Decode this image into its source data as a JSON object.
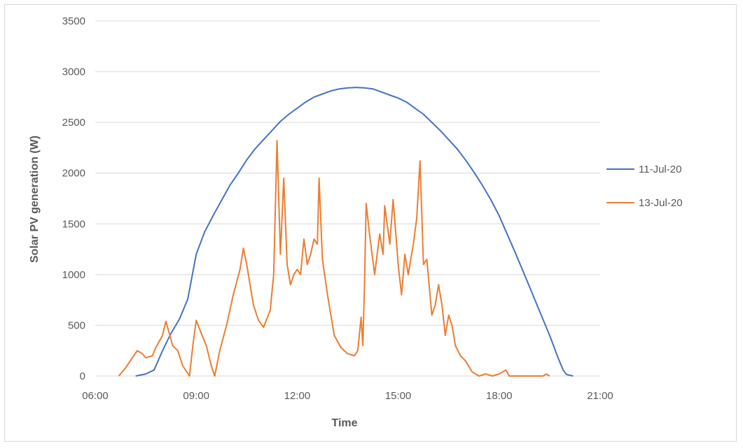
{
  "chart_data": {
    "type": "line",
    "title": "",
    "xlabel": "Time",
    "ylabel": "Solar PV generation (W)",
    "x_unit": "hours of day",
    "xlim": [
      6,
      21
    ],
    "ylim": [
      0,
      3500
    ],
    "grid": "horizontal",
    "legend_position": "right",
    "x_ticks": [
      {
        "value": 6,
        "label": "06:00"
      },
      {
        "value": 9,
        "label": "09:00"
      },
      {
        "value": 12,
        "label": "12:00"
      },
      {
        "value": 15,
        "label": "15:00"
      },
      {
        "value": 18,
        "label": "18:00"
      },
      {
        "value": 21,
        "label": "21:00"
      }
    ],
    "y_ticks": [
      0,
      500,
      1000,
      1500,
      2000,
      2500,
      3000,
      3500
    ],
    "series": [
      {
        "name": "11-Jul-20",
        "color": "#4472c4",
        "points": [
          [
            7.2,
            0
          ],
          [
            7.5,
            20
          ],
          [
            7.75,
            60
          ],
          [
            8.0,
            250
          ],
          [
            8.25,
            420
          ],
          [
            8.5,
            560
          ],
          [
            8.75,
            760
          ],
          [
            9.0,
            1200
          ],
          [
            9.25,
            1420
          ],
          [
            9.5,
            1580
          ],
          [
            9.75,
            1730
          ],
          [
            10.0,
            1880
          ],
          [
            10.25,
            2000
          ],
          [
            10.5,
            2130
          ],
          [
            10.75,
            2240
          ],
          [
            11.0,
            2330
          ],
          [
            11.25,
            2420
          ],
          [
            11.5,
            2510
          ],
          [
            11.75,
            2580
          ],
          [
            12.0,
            2640
          ],
          [
            12.25,
            2700
          ],
          [
            12.5,
            2750
          ],
          [
            12.75,
            2780
          ],
          [
            13.0,
            2810
          ],
          [
            13.25,
            2830
          ],
          [
            13.5,
            2840
          ],
          [
            13.75,
            2845
          ],
          [
            14.0,
            2840
          ],
          [
            14.25,
            2830
          ],
          [
            14.5,
            2800
          ],
          [
            14.75,
            2770
          ],
          [
            15.0,
            2740
          ],
          [
            15.25,
            2700
          ],
          [
            15.5,
            2640
          ],
          [
            15.75,
            2580
          ],
          [
            16.0,
            2500
          ],
          [
            16.25,
            2420
          ],
          [
            16.5,
            2330
          ],
          [
            16.75,
            2240
          ],
          [
            17.0,
            2130
          ],
          [
            17.25,
            2010
          ],
          [
            17.5,
            1880
          ],
          [
            17.75,
            1740
          ],
          [
            18.0,
            1580
          ],
          [
            18.25,
            1390
          ],
          [
            18.5,
            1200
          ],
          [
            18.75,
            1000
          ],
          [
            19.0,
            800
          ],
          [
            19.25,
            600
          ],
          [
            19.5,
            400
          ],
          [
            19.75,
            180
          ],
          [
            19.9,
            60
          ],
          [
            20.0,
            15
          ],
          [
            20.2,
            0
          ]
        ]
      },
      {
        "name": "13-Jul-20",
        "color": "#ed7d31",
        "points": [
          [
            6.7,
            0
          ],
          [
            6.9,
            80
          ],
          [
            7.1,
            180
          ],
          [
            7.25,
            250
          ],
          [
            7.4,
            220
          ],
          [
            7.5,
            180
          ],
          [
            7.7,
            200
          ],
          [
            7.8,
            280
          ],
          [
            8.0,
            400
          ],
          [
            8.1,
            540
          ],
          [
            8.2,
            420
          ],
          [
            8.3,
            300
          ],
          [
            8.45,
            250
          ],
          [
            8.6,
            100
          ],
          [
            8.8,
            0
          ],
          [
            8.9,
            300
          ],
          [
            9.0,
            550
          ],
          [
            9.15,
            420
          ],
          [
            9.3,
            300
          ],
          [
            9.45,
            100
          ],
          [
            9.55,
            0
          ],
          [
            9.7,
            250
          ],
          [
            9.9,
            500
          ],
          [
            10.0,
            650
          ],
          [
            10.1,
            800
          ],
          [
            10.3,
            1050
          ],
          [
            10.4,
            1260
          ],
          [
            10.5,
            1100
          ],
          [
            10.6,
            900
          ],
          [
            10.7,
            700
          ],
          [
            10.85,
            550
          ],
          [
            11.0,
            480
          ],
          [
            11.2,
            650
          ],
          [
            11.3,
            1000
          ],
          [
            11.4,
            2320
          ],
          [
            11.5,
            1200
          ],
          [
            11.6,
            1950
          ],
          [
            11.7,
            1100
          ],
          [
            11.8,
            900
          ],
          [
            11.9,
            1000
          ],
          [
            12.0,
            1050
          ],
          [
            12.1,
            1000
          ],
          [
            12.2,
            1350
          ],
          [
            12.3,
            1100
          ],
          [
            12.4,
            1200
          ],
          [
            12.5,
            1350
          ],
          [
            12.6,
            1300
          ],
          [
            12.65,
            1950
          ],
          [
            12.75,
            1150
          ],
          [
            12.9,
            800
          ],
          [
            13.0,
            600
          ],
          [
            13.1,
            400
          ],
          [
            13.3,
            280
          ],
          [
            13.5,
            220
          ],
          [
            13.7,
            200
          ],
          [
            13.8,
            250
          ],
          [
            13.9,
            580
          ],
          [
            13.95,
            300
          ],
          [
            14.0,
            900
          ],
          [
            14.05,
            1700
          ],
          [
            14.15,
            1400
          ],
          [
            14.3,
            1000
          ],
          [
            14.45,
            1400
          ],
          [
            14.55,
            1200
          ],
          [
            14.6,
            1680
          ],
          [
            14.75,
            1300
          ],
          [
            14.85,
            1740
          ],
          [
            15.0,
            1100
          ],
          [
            15.1,
            800
          ],
          [
            15.2,
            1200
          ],
          [
            15.3,
            1000
          ],
          [
            15.45,
            1300
          ],
          [
            15.55,
            1550
          ],
          [
            15.65,
            2120
          ],
          [
            15.75,
            1100
          ],
          [
            15.85,
            1150
          ],
          [
            16.0,
            600
          ],
          [
            16.1,
            700
          ],
          [
            16.2,
            900
          ],
          [
            16.3,
            700
          ],
          [
            16.4,
            400
          ],
          [
            16.5,
            600
          ],
          [
            16.6,
            500
          ],
          [
            16.7,
            300
          ],
          [
            16.85,
            200
          ],
          [
            17.0,
            150
          ],
          [
            17.2,
            40
          ],
          [
            17.4,
            0
          ],
          [
            17.6,
            20
          ],
          [
            17.8,
            0
          ],
          [
            18.0,
            20
          ],
          [
            18.2,
            60
          ],
          [
            18.3,
            0
          ],
          [
            19.3,
            0
          ],
          [
            19.4,
            20
          ],
          [
            19.5,
            0
          ]
        ]
      }
    ]
  }
}
